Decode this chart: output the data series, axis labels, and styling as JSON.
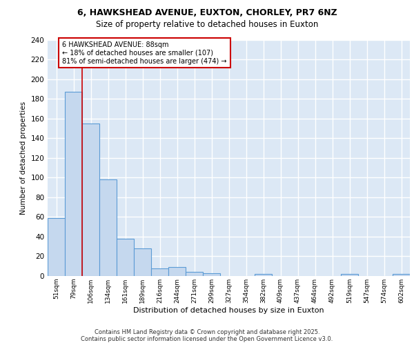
{
  "title_line1": "6, HAWKSHEAD AVENUE, EUXTON, CHORLEY, PR7 6NZ",
  "title_line2": "Size of property relative to detached houses in Euxton",
  "xlabel": "Distribution of detached houses by size in Euxton",
  "ylabel": "Number of detached properties",
  "categories": [
    "51sqm",
    "79sqm",
    "106sqm",
    "134sqm",
    "161sqm",
    "189sqm",
    "216sqm",
    "244sqm",
    "271sqm",
    "299sqm",
    "327sqm",
    "354sqm",
    "382sqm",
    "409sqm",
    "437sqm",
    "464sqm",
    "492sqm",
    "519sqm",
    "547sqm",
    "574sqm",
    "602sqm"
  ],
  "values": [
    59,
    187,
    155,
    98,
    38,
    28,
    8,
    9,
    4,
    3,
    0,
    0,
    2,
    0,
    0,
    0,
    0,
    2,
    0,
    0,
    2
  ],
  "bar_color": "#c5d8ee",
  "bar_edge_color": "#5b9bd5",
  "background_color": "#dce8f5",
  "grid_color": "#ffffff",
  "ylim": [
    0,
    240
  ],
  "yticks": [
    0,
    20,
    40,
    60,
    80,
    100,
    120,
    140,
    160,
    180,
    200,
    220,
    240
  ],
  "red_line_x": 1.5,
  "annotation_title": "6 HAWKSHEAD AVENUE: 88sqm",
  "annotation_line1": "← 18% of detached houses are smaller (107)",
  "annotation_line2": "81% of semi-detached houses are larger (474) →",
  "annotation_box_color": "#ffffff",
  "annotation_box_edge": "#cc0000",
  "footer_line1": "Contains HM Land Registry data © Crown copyright and database right 2025.",
  "footer_line2": "Contains public sector information licensed under the Open Government Licence v3.0."
}
